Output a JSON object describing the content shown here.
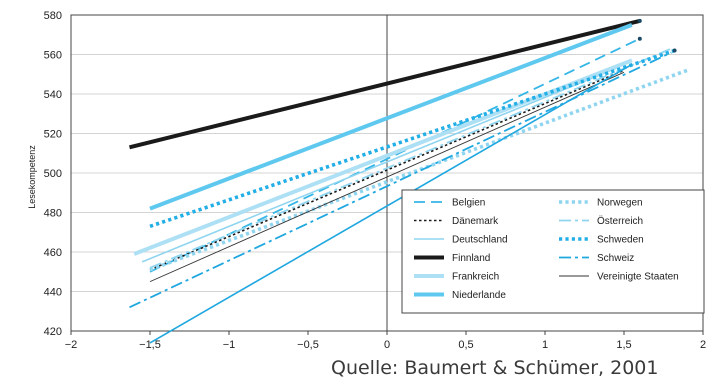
{
  "chart_data": {
    "type": "line",
    "title": "",
    "xlabel": "",
    "ylabel": "Lesekompetenz",
    "xlim": [
      -2,
      2
    ],
    "ylim": [
      420,
      580
    ],
    "x_ticks": [
      -2,
      -1.5,
      -1,
      -0.5,
      0,
      0.5,
      1,
      1.5,
      2
    ],
    "x_tick_labels": [
      "−2",
      "−1,5",
      "−1",
      "−0,5",
      "0",
      "0,5",
      "1",
      "1,5",
      "2"
    ],
    "y_ticks": [
      420,
      440,
      460,
      480,
      500,
      520,
      540,
      560,
      580
    ],
    "y_tick_labels": [
      "420",
      "440",
      "460",
      "480",
      "500",
      "520",
      "540",
      "560",
      "580"
    ],
    "grid": true,
    "legend_position": "bottom-right",
    "series": [
      {
        "name": "Belgien",
        "color": "#35b6e6",
        "style": "dashed",
        "x": [
          -1.5,
          1.6
        ],
        "y": [
          450,
          568
        ]
      },
      {
        "name": "Dänemark",
        "color": "#1a1a1a",
        "style": "dotted",
        "x": [
          -1.5,
          1.5
        ],
        "y": [
          451,
          552
        ]
      },
      {
        "name": "Deutschland",
        "color": "#8fd5f0",
        "style": "solid",
        "x": [
          -1.55,
          1.45
        ],
        "y": [
          455,
          553
        ]
      },
      {
        "name": "Finnland",
        "color": "#1a1a1a",
        "style": "solid-thick",
        "x": [
          -1.63,
          1.6
        ],
        "y": [
          513,
          577
        ]
      },
      {
        "name": "Frankreich",
        "color": "#aee0f5",
        "style": "solid-thick",
        "x": [
          -1.6,
          1.55
        ],
        "y": [
          459,
          557
        ]
      },
      {
        "name": "Niederlande",
        "color": "#5ec8ef",
        "style": "solid-thick",
        "x": [
          -1.5,
          1.55
        ],
        "y": [
          482,
          575
        ]
      },
      {
        "name": "Norwegen",
        "color": "#8fd5f0",
        "style": "dotted-thick",
        "x": [
          -1.5,
          1.9
        ],
        "y": [
          451,
          552
        ]
      },
      {
        "name": "Österreich",
        "color": "#8fd5f0",
        "style": "dashdot",
        "x": [
          -1.5,
          1.8
        ],
        "y": [
          452,
          563
        ]
      },
      {
        "name": "Schweden",
        "color": "#22aee6",
        "style": "dotted-thick",
        "x": [
          -1.5,
          1.82
        ],
        "y": [
          473,
          562
        ]
      },
      {
        "name": "Schweiz",
        "color": "#1fa7e0",
        "style": "dashdot",
        "x": [
          -1.63,
          1.8
        ],
        "y": [
          432,
          561
        ]
      },
      {
        "name": "Vereinigte Staaten",
        "color": "#333333",
        "style": "solid-thin",
        "x": [
          -1.5,
          1.5
        ],
        "y": [
          445,
          551
        ]
      },
      {
        "name": "",
        "color": "#1fa7e0",
        "style": "solid",
        "x": [
          -1.5,
          1.55
        ],
        "y": [
          414,
          555
        ]
      }
    ]
  },
  "source": "Quelle: Baumert & Schümer, 2001"
}
